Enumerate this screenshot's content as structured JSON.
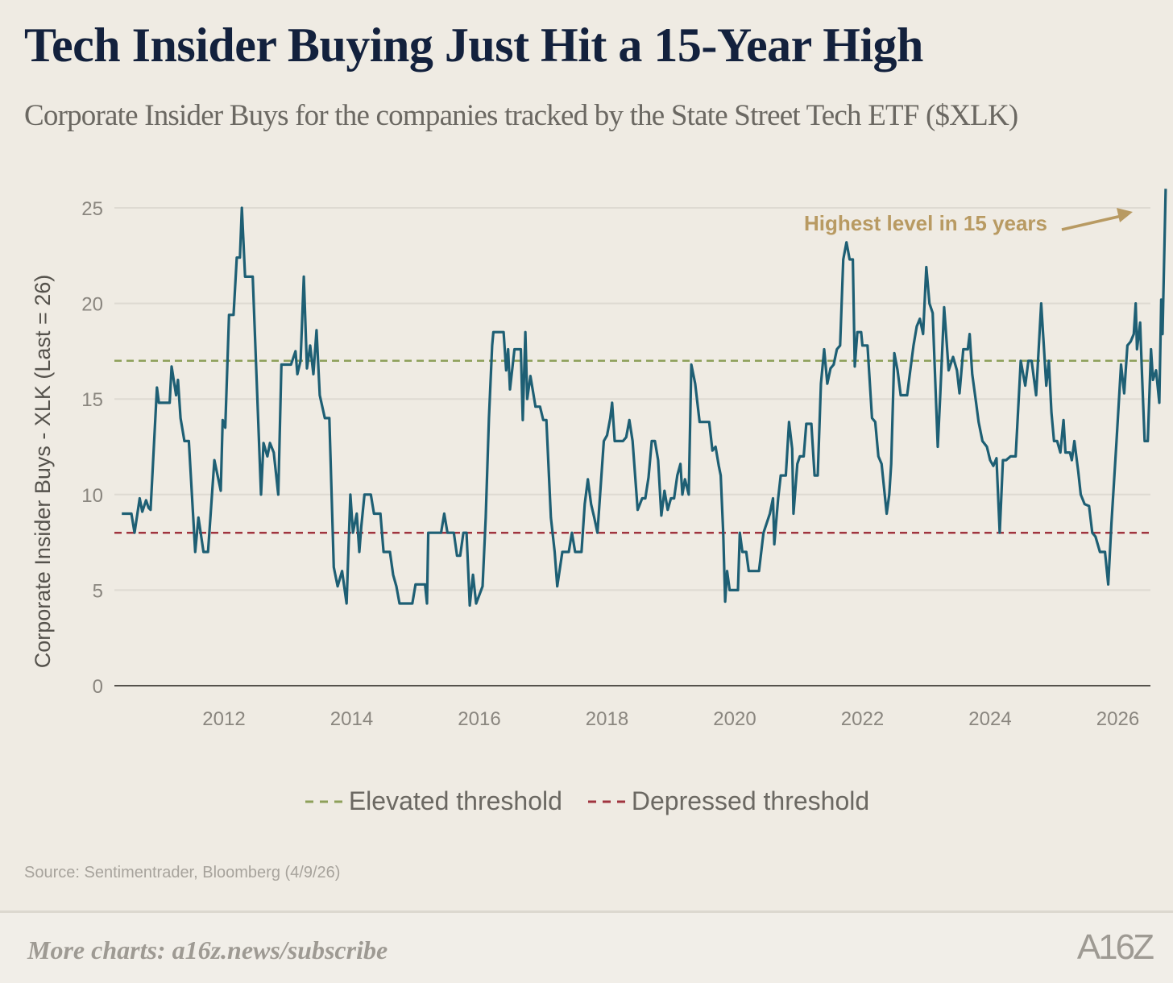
{
  "header": {
    "title": "Tech Insider Buying Just Hit a 15-Year High",
    "subtitle": "Corporate Insider Buys for the companies tracked by the State Street Tech ETF ($XLK)"
  },
  "colors": {
    "line": "#1e5f74",
    "elevated": "#8ea05a",
    "depressed": "#a0343f",
    "annotation": "#b89a62",
    "grid": "#dedad2",
    "axis": "#55524c"
  },
  "chart_data": {
    "type": "line",
    "title": "Tech Insider Buying Just Hit a 15-Year High",
    "subtitle": "Corporate Insider Buys for the companies tracked by the State Street Tech ETF ($XLK)",
    "xlabel": "",
    "ylabel": "Corporate Insider Buys - XLK (Last = 26)",
    "xlim": [
      2010.4,
      2026.55
    ],
    "ylim": [
      0,
      26
    ],
    "x_ticks": [
      2012,
      2014,
      2016,
      2018,
      2020,
      2022,
      2024,
      2026
    ],
    "x_tick_labels": [
      "2012",
      "2014",
      "2016",
      "2018",
      "2020",
      "2022",
      "2024",
      "2026"
    ],
    "y_ticks": [
      0,
      5,
      10,
      15,
      20,
      25
    ],
    "y_tick_labels": [
      "0",
      "5",
      "10",
      "15",
      "20",
      "25"
    ],
    "grid": true,
    "legend_position": "bottom",
    "reference_lines": [
      {
        "name": "Elevated threshold",
        "value": 17,
        "style": "dashed"
      },
      {
        "name": "Depressed threshold",
        "value": 8,
        "style": "dashed"
      }
    ],
    "annotation": {
      "text": "Highest level in 15 years",
      "points_to": [
        2026.5,
        26
      ]
    },
    "series": [
      {
        "name": "Corporate Insider Buys - XLK",
        "points": [
          [
            2010.4,
            9
          ],
          [
            2010.55,
            9
          ],
          [
            2010.6,
            8
          ],
          [
            2010.68,
            9.8
          ],
          [
            2010.72,
            9.1
          ],
          [
            2010.78,
            9.7
          ],
          [
            2010.82,
            9.3
          ],
          [
            2010.85,
            9.2
          ],
          [
            2010.95,
            15.6
          ],
          [
            2010.98,
            14.8
          ],
          [
            2011.15,
            14.8
          ],
          [
            2011.18,
            16.7
          ],
          [
            2011.25,
            15.2
          ],
          [
            2011.28,
            16
          ],
          [
            2011.32,
            14
          ],
          [
            2011.38,
            12.8
          ],
          [
            2011.45,
            12.8
          ],
          [
            2011.55,
            7
          ],
          [
            2011.6,
            8.8
          ],
          [
            2011.68,
            7
          ],
          [
            2011.75,
            7
          ],
          [
            2011.85,
            11.8
          ],
          [
            2011.95,
            10.2
          ],
          [
            2011.98,
            13.9
          ],
          [
            2012.02,
            13.5
          ],
          [
            2012.08,
            19.4
          ],
          [
            2012.15,
            19.4
          ],
          [
            2012.2,
            22.4
          ],
          [
            2012.25,
            22.4
          ],
          [
            2012.28,
            25
          ],
          [
            2012.33,
            21.4
          ],
          [
            2012.45,
            21.4
          ],
          [
            2012.58,
            10
          ],
          [
            2012.62,
            12.7
          ],
          [
            2012.68,
            12
          ],
          [
            2012.72,
            12.7
          ],
          [
            2012.78,
            12.2
          ],
          [
            2012.85,
            10
          ],
          [
            2012.9,
            16.8
          ],
          [
            2013.05,
            16.8
          ],
          [
            2013.12,
            17.5
          ],
          [
            2013.15,
            16.3
          ],
          [
            2013.2,
            17
          ],
          [
            2013.25,
            21.4
          ],
          [
            2013.3,
            16.6
          ],
          [
            2013.35,
            17.8
          ],
          [
            2013.4,
            16.3
          ],
          [
            2013.45,
            18.6
          ],
          [
            2013.5,
            15.2
          ],
          [
            2013.58,
            14
          ],
          [
            2013.65,
            14
          ],
          [
            2013.72,
            6.2
          ],
          [
            2013.78,
            5.2
          ],
          [
            2013.85,
            6
          ],
          [
            2013.92,
            4.3
          ],
          [
            2013.98,
            10
          ],
          [
            2014.02,
            8
          ],
          [
            2014.08,
            9
          ],
          [
            2014.12,
            7
          ],
          [
            2014.15,
            8.3
          ],
          [
            2014.2,
            10
          ],
          [
            2014.3,
            10
          ],
          [
            2014.35,
            9
          ],
          [
            2014.45,
            9
          ],
          [
            2014.5,
            7
          ],
          [
            2014.6,
            7
          ],
          [
            2014.65,
            5.8
          ],
          [
            2014.7,
            5.2
          ],
          [
            2014.75,
            4.3
          ],
          [
            2014.95,
            4.3
          ],
          [
            2015.0,
            5.3
          ],
          [
            2015.15,
            5.3
          ],
          [
            2015.18,
            4.3
          ],
          [
            2015.2,
            8
          ],
          [
            2015.4,
            8
          ],
          [
            2015.45,
            9
          ],
          [
            2015.5,
            8
          ],
          [
            2015.6,
            8
          ],
          [
            2015.65,
            6.8
          ],
          [
            2015.7,
            6.8
          ],
          [
            2015.75,
            8
          ],
          [
            2015.8,
            8
          ],
          [
            2015.85,
            4.2
          ],
          [
            2015.9,
            5.8
          ],
          [
            2015.95,
            4.3
          ],
          [
            2016.05,
            5.2
          ],
          [
            2016.1,
            8.8
          ],
          [
            2016.15,
            14
          ],
          [
            2016.2,
            17.8
          ],
          [
            2016.22,
            18.5
          ],
          [
            2016.38,
            18.5
          ],
          [
            2016.42,
            16.5
          ],
          [
            2016.45,
            17.6
          ],
          [
            2016.48,
            15.5
          ],
          [
            2016.55,
            17.6
          ],
          [
            2016.65,
            17.6
          ],
          [
            2016.68,
            13.9
          ],
          [
            2016.72,
            18.5
          ],
          [
            2016.75,
            15
          ],
          [
            2016.8,
            16.2
          ],
          [
            2016.88,
            14.6
          ],
          [
            2016.95,
            14.6
          ],
          [
            2017.0,
            13.9
          ],
          [
            2017.05,
            13.9
          ],
          [
            2017.12,
            8.8
          ],
          [
            2017.18,
            7
          ],
          [
            2017.22,
            5.2
          ],
          [
            2017.3,
            7
          ],
          [
            2017.4,
            7
          ],
          [
            2017.45,
            8
          ],
          [
            2017.5,
            7
          ],
          [
            2017.6,
            7
          ],
          [
            2017.65,
            9.5
          ],
          [
            2017.7,
            10.8
          ],
          [
            2017.75,
            9.5
          ],
          [
            2017.8,
            8.8
          ],
          [
            2017.85,
            8
          ],
          [
            2017.95,
            12.8
          ],
          [
            2018.0,
            13.1
          ],
          [
            2018.05,
            14
          ],
          [
            2018.08,
            14.8
          ],
          [
            2018.12,
            12.8
          ],
          [
            2018.2,
            12.8
          ],
          [
            2018.25,
            12.8
          ],
          [
            2018.3,
            13
          ],
          [
            2018.35,
            13.9
          ],
          [
            2018.4,
            12.8
          ],
          [
            2018.48,
            9.2
          ],
          [
            2018.55,
            9.8
          ],
          [
            2018.6,
            9.8
          ],
          [
            2018.65,
            10.9
          ],
          [
            2018.7,
            12.8
          ],
          [
            2018.75,
            12.8
          ],
          [
            2018.8,
            11.8
          ],
          [
            2018.85,
            8.9
          ],
          [
            2018.9,
            10.2
          ],
          [
            2018.95,
            9.2
          ],
          [
            2019.0,
            9.8
          ],
          [
            2019.05,
            9.8
          ],
          [
            2019.1,
            11
          ],
          [
            2019.15,
            11.6
          ],
          [
            2019.18,
            10
          ],
          [
            2019.22,
            10.8
          ],
          [
            2019.28,
            10
          ],
          [
            2019.32,
            16.8
          ],
          [
            2019.38,
            15.8
          ],
          [
            2019.45,
            13.8
          ],
          [
            2019.6,
            13.8
          ],
          [
            2019.65,
            12.3
          ],
          [
            2019.7,
            12.5
          ],
          [
            2019.75,
            11.5
          ],
          [
            2019.78,
            11
          ],
          [
            2019.82,
            8
          ],
          [
            2019.85,
            4.4
          ],
          [
            2019.88,
            6
          ],
          [
            2019.92,
            5
          ],
          [
            2019.98,
            5
          ],
          [
            2020.05,
            5
          ],
          [
            2020.08,
            8
          ],
          [
            2020.12,
            7
          ],
          [
            2020.18,
            7
          ],
          [
            2020.22,
            6
          ],
          [
            2020.3,
            6
          ],
          [
            2020.38,
            6
          ],
          [
            2020.45,
            8
          ],
          [
            2020.55,
            9
          ],
          [
            2020.6,
            9.8
          ],
          [
            2020.62,
            7.4
          ],
          [
            2020.68,
            9.8
          ],
          [
            2020.72,
            11
          ],
          [
            2020.8,
            11
          ],
          [
            2020.85,
            13.8
          ],
          [
            2020.9,
            12.4
          ],
          [
            2020.92,
            9
          ],
          [
            2020.98,
            11.6
          ],
          [
            2021.02,
            12
          ],
          [
            2021.08,
            12
          ],
          [
            2021.12,
            13.7
          ],
          [
            2021.2,
            13.7
          ],
          [
            2021.25,
            11
          ],
          [
            2021.3,
            11
          ],
          [
            2021.35,
            15.8
          ],
          [
            2021.4,
            17.6
          ],
          [
            2021.45,
            15.8
          ],
          [
            2021.5,
            16.6
          ],
          [
            2021.55,
            16.8
          ],
          [
            2021.6,
            17.6
          ],
          [
            2021.65,
            17.8
          ],
          [
            2021.7,
            22.3
          ],
          [
            2021.75,
            23.2
          ],
          [
            2021.8,
            22.3
          ],
          [
            2021.85,
            22.3
          ],
          [
            2021.88,
            16.7
          ],
          [
            2021.92,
            18.5
          ],
          [
            2021.98,
            18.5
          ],
          [
            2022.0,
            17.8
          ],
          [
            2022.08,
            17.8
          ],
          [
            2022.15,
            14
          ],
          [
            2022.2,
            13.8
          ],
          [
            2022.25,
            12
          ],
          [
            2022.3,
            11.6
          ],
          [
            2022.38,
            9
          ],
          [
            2022.42,
            10
          ],
          [
            2022.45,
            11.6
          ],
          [
            2022.5,
            17.4
          ],
          [
            2022.55,
            16.5
          ],
          [
            2022.6,
            15.2
          ],
          [
            2022.7,
            15.2
          ],
          [
            2022.75,
            16.5
          ],
          [
            2022.8,
            17.8
          ],
          [
            2022.85,
            18.8
          ],
          [
            2022.9,
            19.2
          ],
          [
            2022.95,
            18.4
          ],
          [
            2023.0,
            21.9
          ],
          [
            2023.05,
            20
          ],
          [
            2023.1,
            19.5
          ],
          [
            2023.18,
            12.5
          ],
          [
            2023.22,
            15.3
          ],
          [
            2023.28,
            19.8
          ],
          [
            2023.3,
            18.9
          ],
          [
            2023.35,
            16.5
          ],
          [
            2023.42,
            17.2
          ],
          [
            2023.48,
            16.5
          ],
          [
            2023.52,
            15.3
          ],
          [
            2023.58,
            17.6
          ],
          [
            2023.65,
            17.6
          ],
          [
            2023.68,
            18.4
          ],
          [
            2023.72,
            16.3
          ],
          [
            2023.78,
            14.8
          ],
          [
            2023.82,
            13.8
          ],
          [
            2023.88,
            12.8
          ],
          [
            2023.95,
            12.5
          ],
          [
            2024.0,
            11.8
          ],
          [
            2024.05,
            11.5
          ],
          [
            2024.1,
            11.9
          ],
          [
            2024.15,
            8
          ],
          [
            2024.2,
            11.8
          ],
          [
            2024.25,
            11.8
          ],
          [
            2024.32,
            12
          ],
          [
            2024.4,
            12
          ],
          [
            2024.48,
            17
          ],
          [
            2024.55,
            15.7
          ],
          [
            2024.6,
            17
          ],
          [
            2024.65,
            17
          ],
          [
            2024.72,
            15.2
          ],
          [
            2024.8,
            20
          ],
          [
            2024.88,
            15.7
          ],
          [
            2024.92,
            17
          ],
          [
            2024.96,
            14.3
          ],
          [
            2025.0,
            12.8
          ],
          [
            2025.05,
            12.8
          ],
          [
            2025.1,
            12.2
          ],
          [
            2025.15,
            13.9
          ],
          [
            2025.18,
            12.2
          ],
          [
            2025.25,
            12.2
          ],
          [
            2025.28,
            11.8
          ],
          [
            2025.32,
            12.8
          ],
          [
            2025.38,
            11.2
          ],
          [
            2025.42,
            10
          ],
          [
            2025.48,
            9.5
          ],
          [
            2025.55,
            9.4
          ],
          [
            2025.6,
            8
          ],
          [
            2025.65,
            7.8
          ],
          [
            2025.72,
            7
          ],
          [
            2025.8,
            7
          ],
          [
            2025.85,
            5.3
          ],
          [
            2025.9,
            8.5
          ],
          [
            2025.98,
            12.8
          ],
          [
            2026.05,
            16.8
          ],
          [
            2026.1,
            15.3
          ],
          [
            2026.15,
            17.8
          ],
          [
            2026.2,
            18
          ],
          [
            2026.25,
            18.4
          ],
          [
            2026.28,
            20
          ],
          [
            2026.3,
            17.6
          ],
          [
            2026.35,
            19
          ],
          [
            2026.38,
            16.2
          ],
          [
            2026.42,
            12.8
          ],
          [
            2026.47,
            12.8
          ],
          [
            2026.52,
            17.6
          ],
          [
            2026.55,
            16
          ],
          [
            2026.6,
            16.5
          ],
          [
            2026.65,
            14.8
          ],
          [
            2026.68,
            20.2
          ],
          [
            2026.7,
            18.4
          ],
          [
            2026.75,
            26
          ]
        ]
      }
    ]
  },
  "legend": {
    "items": [
      {
        "label": "Elevated threshold"
      },
      {
        "label": "Depressed threshold"
      }
    ]
  },
  "footer": {
    "source": "Source: Sentimentrader, Bloomberg (4/9/26)",
    "more_charts": "More charts: a16z.news/subscribe",
    "logo": "A16Z"
  }
}
